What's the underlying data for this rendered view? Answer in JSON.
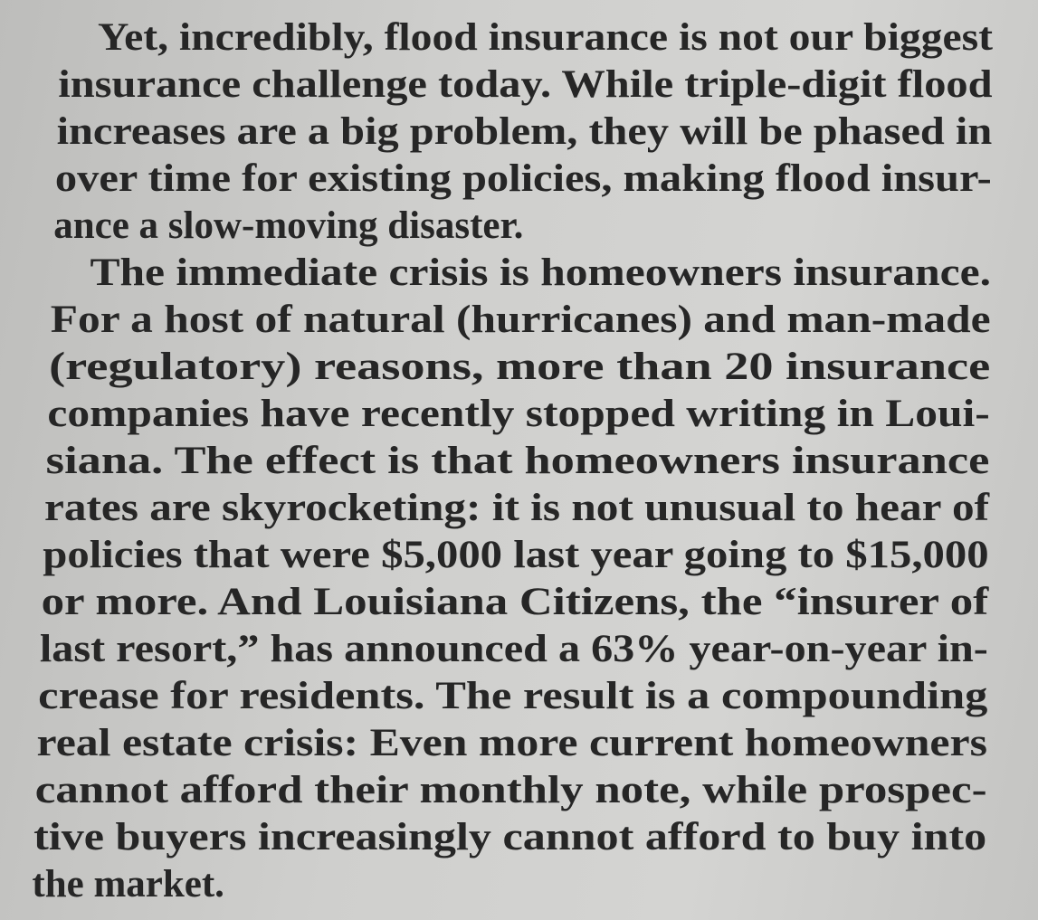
{
  "paragraphs": [
    {
      "lines": [
        "Yet, incredibly, flood insurance is not our biggest",
        "insurance challenge today. While triple-digit flood",
        "increases are a big problem, they will be phased in",
        "over time for existing policies, making flood insur-",
        "ance a slow-moving disaster."
      ]
    },
    {
      "lines": [
        "The immediate crisis is homeowners insurance.",
        "For a host of natural (hurricanes) and man-made",
        "(regulatory) reasons, more than 20 insurance",
        "companies have recently stopped writing in Loui-",
        "siana. The effect is that homeowners insurance",
        "rates are skyrocketing: it is not unusual to hear of",
        "policies that were $5,000 last year going to $15,000",
        "or more. And Louisiana Citizens, the “insurer of",
        "last resort,” has announced a 63% year-on-year in-",
        "crease for residents. The result is a compounding",
        "real estate crisis: Even more current homeowners",
        "cannot afford their monthly note, while prospec-",
        "tive buyers increasingly cannot afford to buy into",
        "the market."
      ]
    }
  ]
}
